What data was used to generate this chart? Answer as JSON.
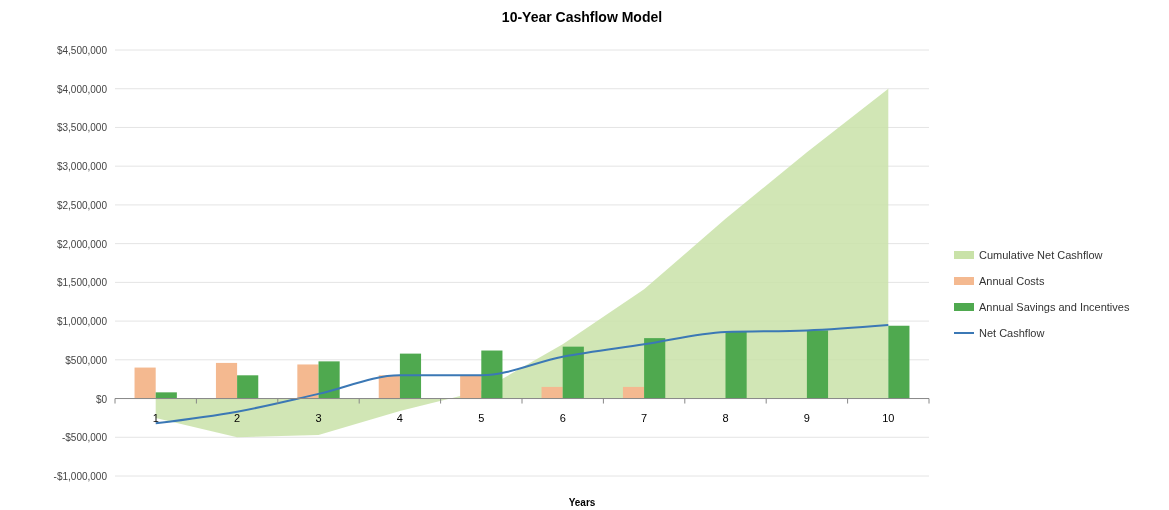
{
  "chart_data": {
    "type": "bar",
    "title": "10-Year Cashflow Model",
    "xlabel": "Years",
    "categories": [
      "1",
      "2",
      "3",
      "4",
      "5",
      "6",
      "7",
      "8",
      "9",
      "10"
    ],
    "series": [
      {
        "name": "Cumulative Net Cashflow",
        "type": "area",
        "color": "#c9e2a8",
        "values": [
          -250000,
          -500000,
          -470000,
          -160000,
          100000,
          700000,
          1410000,
          2320000,
          3180000,
          4000000
        ]
      },
      {
        "name": "Annual Costs",
        "color": "#f4b990",
        "values": [
          400000,
          460000,
          440000,
          300000,
          300000,
          150000,
          150000,
          0,
          0,
          0
        ]
      },
      {
        "name": "Annual Savings and Incentives",
        "color": "#4fa94f",
        "values": [
          80000,
          300000,
          480000,
          580000,
          620000,
          670000,
          780000,
          870000,
          880000,
          940000
        ]
      },
      {
        "name": "Net Cashflow",
        "type": "line",
        "color": "#3b78b5",
        "values": [
          -320000,
          -170000,
          60000,
          300000,
          300000,
          540000,
          700000,
          860000,
          880000,
          950000
        ]
      }
    ],
    "ylim": [
      -1000000,
      4500000
    ],
    "yticks": [
      {
        "value": -1000000,
        "label": "-$1,000,000"
      },
      {
        "value": -500000,
        "label": "-$500,000"
      },
      {
        "value": 0,
        "label": "$0"
      },
      {
        "value": 500000,
        "label": "$500,000"
      },
      {
        "value": 1000000,
        "label": "$1,000,000"
      },
      {
        "value": 1500000,
        "label": "$1,500,000"
      },
      {
        "value": 2000000,
        "label": "$2,000,000"
      },
      {
        "value": 2500000,
        "label": "$2,500,000"
      },
      {
        "value": 3000000,
        "label": "$3,000,000"
      },
      {
        "value": 3500000,
        "label": "$3,500,000"
      },
      {
        "value": 4000000,
        "label": "$4,000,000"
      },
      {
        "value": 4500000,
        "label": "$4,500,000"
      }
    ],
    "grid": "y",
    "legend": "right",
    "line_style": "solid"
  }
}
